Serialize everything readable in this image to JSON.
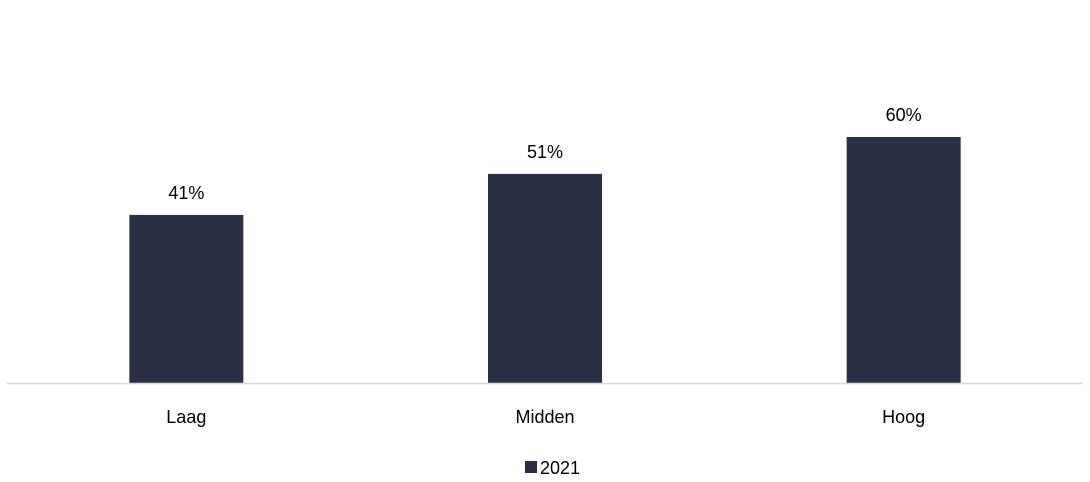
{
  "chart_data": {
    "type": "bar",
    "categories": [
      "Laag",
      "Midden",
      "Hoog"
    ],
    "series": [
      {
        "name": "2021",
        "values": [
          41,
          51,
          60
        ],
        "labels": [
          "41%",
          "51%",
          "60%"
        ],
        "color": "#2b2f45"
      }
    ],
    "ylim": [
      0,
      100
    ],
    "grid": false,
    "legend": "bottom",
    "axis_color": "#d9d9d9"
  }
}
